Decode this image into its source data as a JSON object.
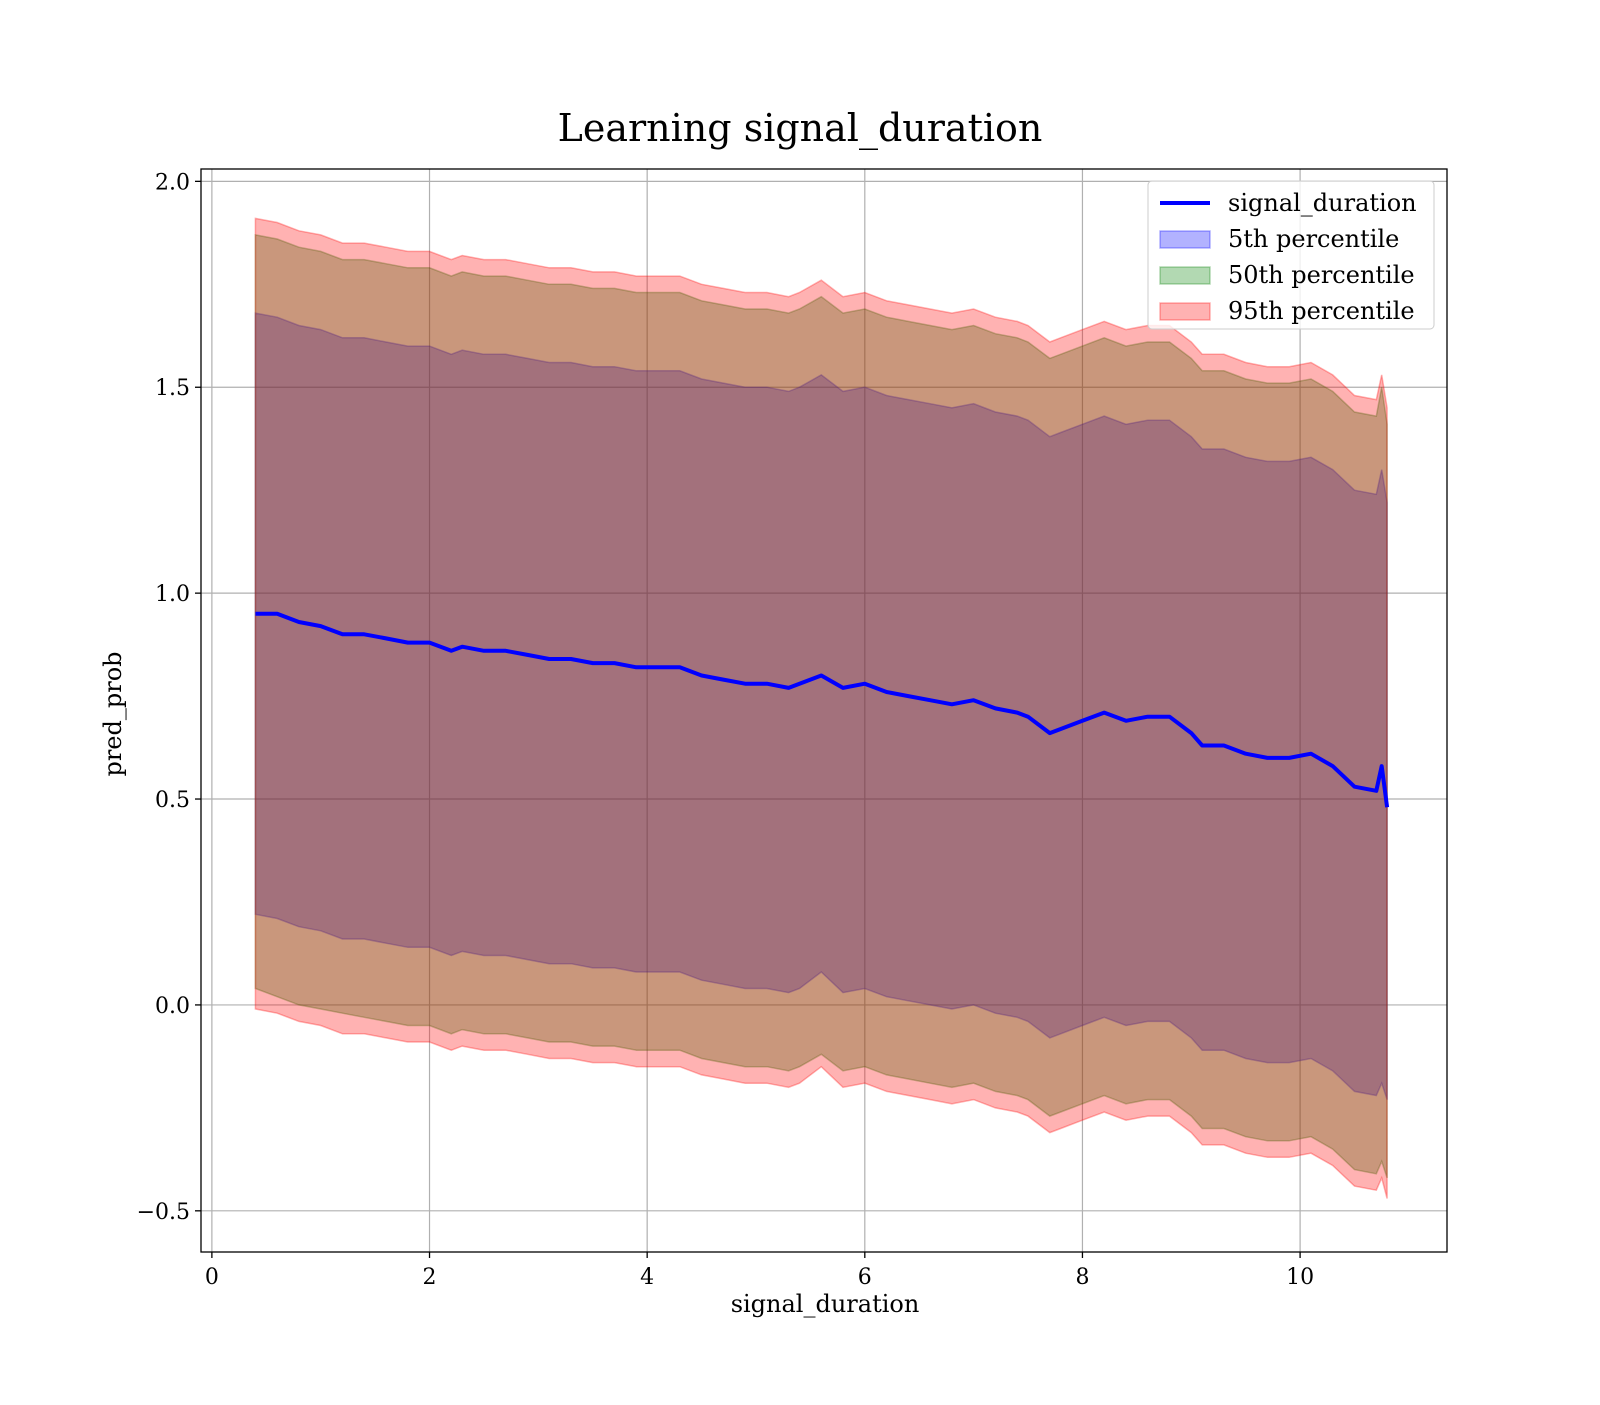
{
  "chart_data": {
    "type": "line",
    "title": "Learning signal_duration",
    "xlabel": "signal_duration",
    "ylabel": "pred_prob",
    "xlim": [
      -0.1,
      11.35
    ],
    "ylim": [
      -0.6,
      2.03
    ],
    "xticks": [
      0,
      2,
      4,
      6,
      8,
      10
    ],
    "xtick_labels": [
      "0",
      "2",
      "4",
      "6",
      "8",
      "10"
    ],
    "yticks": [
      -0.5,
      0.0,
      0.5,
      1.0,
      1.5,
      2.0
    ],
    "ytick_labels": [
      "−0.5",
      "0.0",
      "0.5",
      "1.0",
      "1.5",
      "2.0"
    ],
    "grid": true,
    "legend_position": "top-right",
    "x": [
      0.4,
      0.6,
      0.8,
      1.0,
      1.2,
      1.4,
      1.6,
      1.8,
      2.0,
      2.2,
      2.3,
      2.5,
      2.7,
      2.9,
      3.1,
      3.3,
      3.5,
      3.7,
      3.9,
      4.1,
      4.3,
      4.5,
      4.7,
      4.9,
      5.1,
      5.3,
      5.4,
      5.6,
      5.8,
      6.0,
      6.2,
      6.4,
      6.6,
      6.8,
      7.0,
      7.2,
      7.4,
      7.5,
      7.7,
      7.8,
      8.0,
      8.2,
      8.4,
      8.6,
      8.8,
      9.0,
      9.1,
      9.3,
      9.5,
      9.7,
      9.9,
      10.1,
      10.3,
      10.5,
      10.7,
      10.75,
      10.8
    ],
    "series": [
      {
        "name": "signal_duration",
        "kind": "line",
        "color": "#0000ff",
        "values": [
          0.95,
          0.95,
          0.93,
          0.92,
          0.9,
          0.9,
          0.89,
          0.88,
          0.88,
          0.86,
          0.87,
          0.86,
          0.86,
          0.85,
          0.84,
          0.84,
          0.83,
          0.83,
          0.82,
          0.82,
          0.82,
          0.8,
          0.79,
          0.78,
          0.78,
          0.77,
          0.78,
          0.8,
          0.77,
          0.78,
          0.76,
          0.75,
          0.74,
          0.73,
          0.74,
          0.72,
          0.71,
          0.7,
          0.66,
          0.67,
          0.69,
          0.71,
          0.69,
          0.7,
          0.7,
          0.66,
          0.63,
          0.63,
          0.61,
          0.6,
          0.6,
          0.61,
          0.58,
          0.53,
          0.52,
          0.58,
          0.48
        ]
      },
      {
        "name": "5th percentile",
        "kind": "band",
        "color": "#0000ff",
        "lower": [
          0.22,
          0.21,
          0.19,
          0.18,
          0.16,
          0.16,
          0.15,
          0.14,
          0.14,
          0.12,
          0.13,
          0.12,
          0.12,
          0.11,
          0.1,
          0.1,
          0.09,
          0.09,
          0.08,
          0.08,
          0.08,
          0.06,
          0.05,
          0.04,
          0.04,
          0.03,
          0.04,
          0.08,
          0.03,
          0.04,
          0.02,
          0.01,
          0.0,
          -0.01,
          0.0,
          -0.02,
          -0.03,
          -0.04,
          -0.08,
          -0.07,
          -0.05,
          -0.03,
          -0.05,
          -0.04,
          -0.04,
          -0.08,
          -0.11,
          -0.11,
          -0.13,
          -0.14,
          -0.14,
          -0.13,
          -0.16,
          -0.21,
          -0.22,
          -0.19,
          -0.23
        ],
        "upper": [
          1.68,
          1.67,
          1.65,
          1.64,
          1.62,
          1.62,
          1.61,
          1.6,
          1.6,
          1.58,
          1.59,
          1.58,
          1.58,
          1.57,
          1.56,
          1.56,
          1.55,
          1.55,
          1.54,
          1.54,
          1.54,
          1.52,
          1.51,
          1.5,
          1.5,
          1.49,
          1.5,
          1.53,
          1.49,
          1.5,
          1.48,
          1.47,
          1.46,
          1.45,
          1.46,
          1.44,
          1.43,
          1.42,
          1.38,
          1.39,
          1.41,
          1.43,
          1.41,
          1.42,
          1.42,
          1.38,
          1.35,
          1.35,
          1.33,
          1.32,
          1.32,
          1.33,
          1.3,
          1.25,
          1.24,
          1.3,
          1.22
        ]
      },
      {
        "name": "50th percentile",
        "kind": "band",
        "color": "#008000",
        "lower": [
          0.04,
          0.02,
          0.0,
          -0.01,
          -0.02,
          -0.03,
          -0.04,
          -0.05,
          -0.05,
          -0.07,
          -0.06,
          -0.07,
          -0.07,
          -0.08,
          -0.09,
          -0.09,
          -0.1,
          -0.1,
          -0.11,
          -0.11,
          -0.11,
          -0.13,
          -0.14,
          -0.15,
          -0.15,
          -0.16,
          -0.15,
          -0.12,
          -0.16,
          -0.15,
          -0.17,
          -0.18,
          -0.19,
          -0.2,
          -0.19,
          -0.21,
          -0.22,
          -0.23,
          -0.27,
          -0.26,
          -0.24,
          -0.22,
          -0.24,
          -0.23,
          -0.23,
          -0.27,
          -0.3,
          -0.3,
          -0.32,
          -0.33,
          -0.33,
          -0.32,
          -0.35,
          -0.4,
          -0.41,
          -0.38,
          -0.42
        ],
        "upper": [
          1.87,
          1.86,
          1.84,
          1.83,
          1.81,
          1.81,
          1.8,
          1.79,
          1.79,
          1.77,
          1.78,
          1.77,
          1.77,
          1.76,
          1.75,
          1.75,
          1.74,
          1.74,
          1.73,
          1.73,
          1.73,
          1.71,
          1.7,
          1.69,
          1.69,
          1.68,
          1.69,
          1.72,
          1.68,
          1.69,
          1.67,
          1.66,
          1.65,
          1.64,
          1.65,
          1.63,
          1.62,
          1.61,
          1.57,
          1.58,
          1.6,
          1.62,
          1.6,
          1.61,
          1.61,
          1.57,
          1.54,
          1.54,
          1.52,
          1.51,
          1.51,
          1.52,
          1.49,
          1.44,
          1.43,
          1.5,
          1.41
        ]
      },
      {
        "name": "95th percentile",
        "kind": "band",
        "color": "#ff0000",
        "lower": [
          -0.01,
          -0.02,
          -0.04,
          -0.05,
          -0.07,
          -0.07,
          -0.08,
          -0.09,
          -0.09,
          -0.11,
          -0.1,
          -0.11,
          -0.11,
          -0.12,
          -0.13,
          -0.13,
          -0.14,
          -0.14,
          -0.15,
          -0.15,
          -0.15,
          -0.17,
          -0.18,
          -0.19,
          -0.19,
          -0.2,
          -0.19,
          -0.15,
          -0.2,
          -0.19,
          -0.21,
          -0.22,
          -0.23,
          -0.24,
          -0.23,
          -0.25,
          -0.26,
          -0.27,
          -0.31,
          -0.3,
          -0.28,
          -0.26,
          -0.28,
          -0.27,
          -0.27,
          -0.31,
          -0.34,
          -0.34,
          -0.36,
          -0.37,
          -0.37,
          -0.36,
          -0.39,
          -0.44,
          -0.45,
          -0.42,
          -0.47
        ],
        "upper": [
          1.91,
          1.9,
          1.88,
          1.87,
          1.85,
          1.85,
          1.84,
          1.83,
          1.83,
          1.81,
          1.82,
          1.81,
          1.81,
          1.8,
          1.79,
          1.79,
          1.78,
          1.78,
          1.77,
          1.77,
          1.77,
          1.75,
          1.74,
          1.73,
          1.73,
          1.72,
          1.73,
          1.76,
          1.72,
          1.73,
          1.71,
          1.7,
          1.69,
          1.68,
          1.69,
          1.67,
          1.66,
          1.65,
          1.61,
          1.62,
          1.64,
          1.66,
          1.64,
          1.65,
          1.65,
          1.61,
          1.58,
          1.58,
          1.56,
          1.55,
          1.55,
          1.56,
          1.53,
          1.48,
          1.47,
          1.53,
          1.45
        ]
      }
    ]
  }
}
